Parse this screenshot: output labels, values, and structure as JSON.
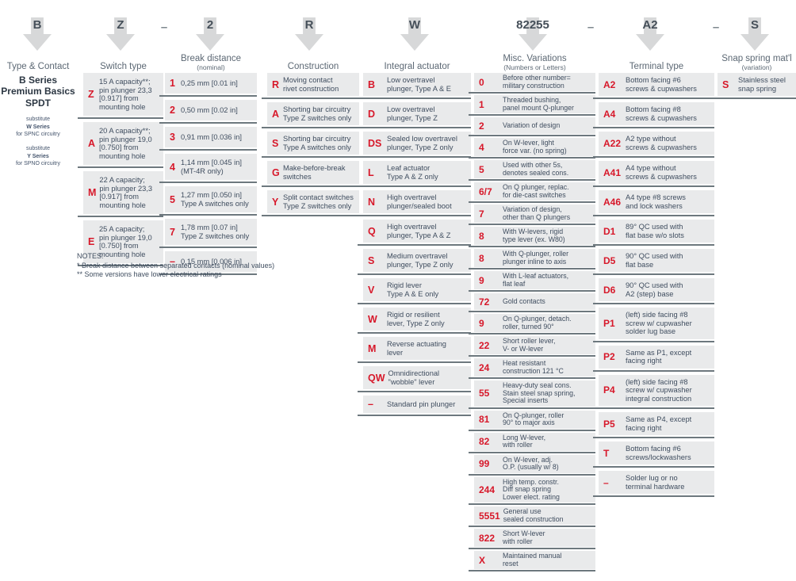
{
  "header": {
    "codes": [
      {
        "text": "B"
      },
      {
        "text": "Z"
      },
      {
        "text": "–"
      },
      {
        "text": "2"
      },
      {
        "text": "R"
      },
      {
        "text": "W"
      },
      {
        "text": "82255"
      },
      {
        "text": "–"
      },
      {
        "text": "A2"
      },
      {
        "text": "–"
      },
      {
        "text": "S"
      }
    ]
  },
  "type_contact": {
    "title": "Type & Contact",
    "product": "B Series\nPremium Basics\nSPDT",
    "substitutions": [
      {
        "line1": "substitute",
        "line2": "W Series",
        "line3": "for SPNC circuitry"
      },
      {
        "line1": "substitute",
        "line2": "Y Series",
        "line3": "for SPNO circuitry"
      }
    ]
  },
  "columns": [
    {
      "title": "Switch type",
      "subtitle": "",
      "rows": [
        {
          "code": "Z",
          "desc": "15 A capacity**;\npin plunger 23,3\n[0.917] from\nmounting hole"
        },
        {
          "code": "A",
          "desc": "20 A capacity**;\npin plunger 19,0\n[0.750] from\nmounting hole"
        },
        {
          "code": "M",
          "desc": "22 A capacity;\npin plunger 23,3\n[0.917] from\nmounting hole"
        },
        {
          "code": "E",
          "desc": "25 A capacity;\npin plunger 19,0\n[0.750] from\nmounting hole"
        }
      ]
    },
    {
      "title": "Break distance",
      "subtitle": "(nominal)",
      "rows": [
        {
          "code": "1",
          "desc": "0,25 mm [0.01 in]"
        },
        {
          "code": "2",
          "desc": "0,50 mm [0.02 in]"
        },
        {
          "code": "3",
          "desc": "0,91 mm [0.036 in]"
        },
        {
          "code": "4",
          "desc": "1,14 mm [0.045 in]\n(MT-4R only)"
        },
        {
          "code": "5",
          "desc": "1,27 mm [0.050 in]\nType A switches only"
        },
        {
          "code": "7",
          "desc": "1,78 mm [0.07 in]\nType Z switches only"
        },
        {
          "code": "–",
          "desc": "0,15 mm [0.006 in]"
        }
      ]
    },
    {
      "title": "Construction",
      "subtitle": "",
      "rows": [
        {
          "code": "R",
          "desc": "Moving contact\nrivet construction"
        },
        {
          "code": "A",
          "desc": "Shorting bar circuitry\nType Z switches only"
        },
        {
          "code": "S",
          "desc": "Shorting bar circuitry\nType A switches only"
        },
        {
          "code": "G",
          "desc": "Make-before-break\nswitches"
        },
        {
          "code": "Y",
          "desc": "Split contact switches\nType Z switches only"
        }
      ]
    },
    {
      "title": "Integral actuator",
      "subtitle": "",
      "rows": [
        {
          "code": "B",
          "desc": "Low overtravel\nplunger, Type A & E"
        },
        {
          "code": "D",
          "desc": "Low overtravel\nplunger, Type Z"
        },
        {
          "code": "DS",
          "desc": "Sealed low overtravel\nplunger, Type Z only"
        },
        {
          "code": "L",
          "desc": "Leaf actuator\nType A & Z only"
        },
        {
          "code": "N",
          "desc": "High overtravel\nplunger/sealed boot"
        },
        {
          "code": "Q",
          "desc": "High overtravel\nplunger, Type A & Z"
        },
        {
          "code": "S",
          "desc": "Medium overtravel\nplunger, Type Z only"
        },
        {
          "code": "V",
          "desc": "Rigid lever\nType A & E only"
        },
        {
          "code": "W",
          "desc": "Rigid or resilient\nlever, Type Z only"
        },
        {
          "code": "M",
          "desc": "Reverse actuating\nlever"
        },
        {
          "code": "QW",
          "desc": "Omnidirectional\n\"wobble\" lever"
        },
        {
          "code": "–",
          "desc": "Standard pin plunger"
        }
      ]
    },
    {
      "title": "Misc. Variations",
      "subtitle": "(Numbers or Letters)",
      "rows": [
        {
          "code": "0",
          "desc": "Before other number=\nmilitary construction"
        },
        {
          "code": "1",
          "desc": "Threaded bushing,\npanel mount Q-plunger"
        },
        {
          "code": "2",
          "desc": "Variation of design"
        },
        {
          "code": "4",
          "desc": "On W-lever, light\nforce var. (no spring)"
        },
        {
          "code": "5",
          "desc": "Used with other 5s,\ndenotes sealed cons."
        },
        {
          "code": "6/7",
          "desc": "On Q plunger, replac.\nfor die-cast switches"
        },
        {
          "code": "7",
          "desc": "Variation of design,\nother than Q plungers"
        },
        {
          "code": "8",
          "desc": "With W-levers, rigid\ntype lever (ex. W80)"
        },
        {
          "code": "8",
          "desc": "With Q-plunger, roller\nplunger inline to axis"
        },
        {
          "code": "9",
          "desc": "With L-leaf actuators,\nflat leaf"
        },
        {
          "code": "72",
          "desc": "Gold contacts"
        },
        {
          "code": "9",
          "desc": "On Q-plunger, detach.\nroller, turned 90°"
        },
        {
          "code": "22",
          "desc": "Short roller lever,\nV- or W-lever"
        },
        {
          "code": "24",
          "desc": "Heat resistant\nconstruction 121 °C"
        },
        {
          "code": "55",
          "desc": "Heavy-duty seal cons.\nStain steel snap spring,\nSpecial inserts"
        },
        {
          "code": "81",
          "desc": "On Q-plunger, roller\n90° to major axis"
        },
        {
          "code": "82",
          "desc": "Long W-lever,\nwith roller"
        },
        {
          "code": "99",
          "desc": "On W-lever, adj.\nO.P. (usually w/ 8)"
        },
        {
          "code": "244",
          "desc": "High temp. constr.\nDiff snap spring\nLower elect. rating"
        },
        {
          "code": "5551",
          "desc": "General use\nsealed construction"
        },
        {
          "code": "822",
          "desc": "Short W-lever\nwith roller"
        },
        {
          "code": "X",
          "desc": "Maintained manual\nreset"
        }
      ]
    },
    {
      "title": "Terminal type",
      "subtitle": "",
      "rows": [
        {
          "code": "A2",
          "desc": "Bottom facing #6\nscrews & cupwashers"
        },
        {
          "code": "A4",
          "desc": "Bottom facing #8\nscrews & cupwashers"
        },
        {
          "code": "A22",
          "desc": "A2 type without\nscrews & cupwashers"
        },
        {
          "code": "A41",
          "desc": "A4 type without\nscrews & cupwashers"
        },
        {
          "code": "A46",
          "desc": "A4 type #8 screws\nand lock washers"
        },
        {
          "code": "D1",
          "desc": "89° QC used with\nflat base w/o slots"
        },
        {
          "code": "D5",
          "desc": "90° QC used with\nflat base"
        },
        {
          "code": "D6",
          "desc": "90° QC used with\nA2 (step) base"
        },
        {
          "code": "P1",
          "desc": "(left) side facing #8\nscrew w/ cupwasher\nsolder lug base"
        },
        {
          "code": "P2",
          "desc": "Same as P1, except\nfacing right"
        },
        {
          "code": "P4",
          "desc": "(left) side facing #8\nscrew w/ cupwasher\nintegral construction"
        },
        {
          "code": "P5",
          "desc": "Same as P4, except\nfacing right"
        },
        {
          "code": "T",
          "desc": "Bottom facing #6\nscrews/lockwashers"
        },
        {
          "code": "–",
          "desc": "Solder lug or no\nterminal hardware"
        }
      ]
    },
    {
      "title": "Snap spring mat'l",
      "subtitle": "(variation)",
      "rows": [
        {
          "code": "S",
          "desc": "Stainless steel\nsnap spring"
        }
      ]
    }
  ],
  "notes": {
    "heading": "NOTES:",
    "lines": [
      "* Break distance between separated contacts (nominal values)",
      "** Some versions have lower electrical ratings"
    ]
  },
  "colors": {
    "accent_red": "#d7182a",
    "row_background": "#e9eaeb",
    "divider": "#6d787e",
    "body_text": "#3f4d5f",
    "arrow_gray": "#d7d8d9"
  }
}
